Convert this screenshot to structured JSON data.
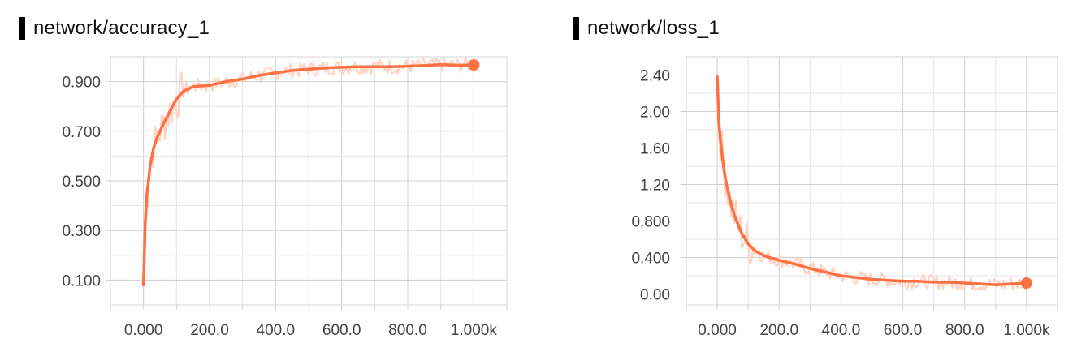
{
  "chart_data": [
    {
      "type": "line",
      "title": "network/accuracy_1",
      "xlabel": "",
      "ylabel": "",
      "xlim": [
        -100,
        1100
      ],
      "ylim": [
        0,
        1.0
      ],
      "x_ticks": [
        0,
        200,
        400,
        600,
        800,
        1000
      ],
      "x_tick_labels": [
        "0.000",
        "200.0",
        "400.0",
        "600.0",
        "800.0",
        "1.000k"
      ],
      "y_ticks": [
        0.1,
        0.3,
        0.5,
        0.7,
        0.9
      ],
      "y_tick_labels": [
        "0.100",
        "0.300",
        "0.500",
        "0.700",
        "0.900"
      ],
      "grid": true,
      "line_color": "#FF7043",
      "raw_color": "#FFD2C4",
      "series": [
        {
          "x": [
            0,
            5,
            10,
            20,
            30,
            40,
            50,
            60,
            80,
            100,
            120,
            150,
            200,
            250,
            300,
            350,
            400,
            450,
            500,
            550,
            600,
            650,
            700,
            750,
            800,
            850,
            900,
            950,
            1000
          ],
          "y": [
            0.08,
            0.32,
            0.44,
            0.56,
            0.63,
            0.67,
            0.7,
            0.73,
            0.78,
            0.83,
            0.86,
            0.88,
            0.885,
            0.9,
            0.91,
            0.925,
            0.935,
            0.945,
            0.95,
            0.955,
            0.958,
            0.96,
            0.96,
            0.96,
            0.962,
            0.965,
            0.968,
            0.966,
            0.967
          ]
        }
      ],
      "last_point": {
        "x": 1000,
        "y": 0.967
      }
    },
    {
      "type": "line",
      "title": "network/loss_1",
      "xlabel": "",
      "ylabel": "",
      "xlim": [
        -100,
        1100
      ],
      "ylim": [
        -0.12,
        2.6
      ],
      "x_ticks": [
        0,
        200,
        400,
        600,
        800,
        1000
      ],
      "x_tick_labels": [
        "0.000",
        "200.0",
        "400.0",
        "600.0",
        "800.0",
        "1.000k"
      ],
      "y_ticks": [
        0.0,
        0.4,
        0.8,
        1.2,
        1.6,
        2.0,
        2.4
      ],
      "y_tick_labels": [
        "0.00",
        "0.400",
        "0.800",
        "1.20",
        "1.60",
        "2.00",
        "2.40"
      ],
      "grid": true,
      "line_color": "#FF7043",
      "raw_color": "#FFD2C4",
      "series": [
        {
          "x": [
            0,
            5,
            10,
            20,
            30,
            40,
            50,
            60,
            80,
            100,
            120,
            150,
            200,
            250,
            300,
            350,
            400,
            450,
            500,
            550,
            600,
            650,
            700,
            750,
            800,
            850,
            900,
            950,
            1000
          ],
          "y": [
            2.38,
            1.9,
            1.7,
            1.4,
            1.2,
            1.05,
            0.92,
            0.82,
            0.66,
            0.55,
            0.48,
            0.42,
            0.37,
            0.33,
            0.28,
            0.24,
            0.2,
            0.18,
            0.16,
            0.15,
            0.14,
            0.14,
            0.13,
            0.13,
            0.12,
            0.11,
            0.1,
            0.11,
            0.12
          ]
        }
      ],
      "last_point": {
        "x": 1000,
        "y": 0.12
      }
    }
  ]
}
